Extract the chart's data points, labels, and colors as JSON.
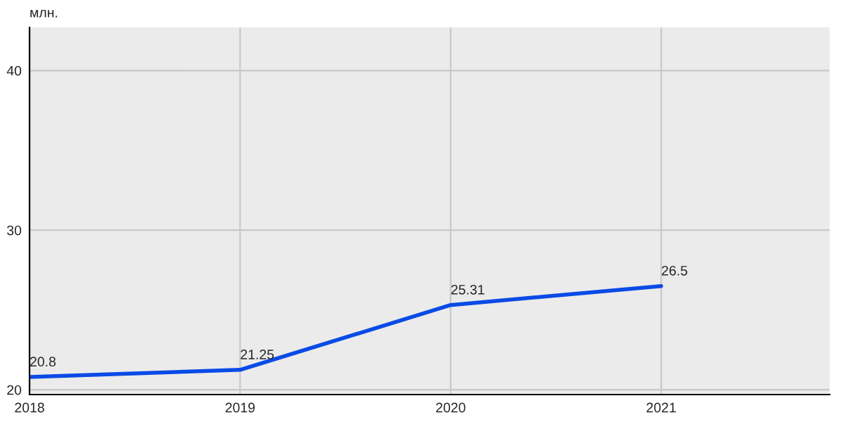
{
  "chart_data": {
    "type": "line",
    "ylabel": "млн.",
    "x": [
      2018,
      2019,
      2020,
      2021
    ],
    "series": [
      {
        "color": "#0a4be6",
        "values": [
          20.8,
          21.25,
          25.31,
          26.5
        ]
      }
    ],
    "xlim": [
      2018,
      2021.8
    ],
    "xticks": [
      2018,
      2019,
      2020,
      2021
    ],
    "ylim": [
      19.7,
      42.7
    ],
    "yticks": [
      20,
      30,
      40
    ],
    "grid": true,
    "data_labels": true,
    "marker": "none",
    "line_style": "solid"
  }
}
